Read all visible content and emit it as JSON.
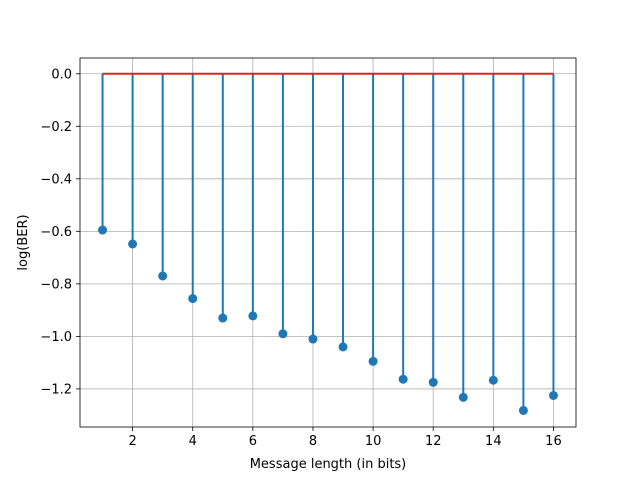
{
  "chart_data": {
    "type": "stem",
    "x": [
      1,
      2,
      3,
      4,
      5,
      6,
      7,
      8,
      9,
      10,
      11,
      12,
      13,
      14,
      15,
      16
    ],
    "y": [
      -0.595,
      -0.648,
      -0.77,
      -0.856,
      -0.93,
      -0.922,
      -0.99,
      -1.01,
      -1.04,
      -1.095,
      -1.163,
      -1.175,
      -1.232,
      -1.167,
      -1.282,
      -1.225
    ],
    "baseline": 0.0,
    "xlabel": "Message length (in bits)",
    "ylabel": "log(BER)",
    "xlim": [
      0.25,
      16.75
    ],
    "ylim": [
      -1.345,
      0.06
    ],
    "xticks": [
      2,
      4,
      6,
      8,
      10,
      12,
      14,
      16
    ],
    "xtick_labels": [
      "2",
      "4",
      "6",
      "8",
      "10",
      "12",
      "14",
      "16"
    ],
    "yticks": [
      0.0,
      -0.2,
      -0.4,
      -0.6,
      -0.8,
      -1.0,
      -1.2
    ],
    "ytick_labels": [
      "0.0",
      "−0.2",
      "−0.4",
      "−0.6",
      "−0.8",
      "−1.0",
      "−1.2"
    ],
    "grid": true,
    "colors": {
      "stem": "#1f77b4",
      "baseline": "#d62728"
    }
  }
}
